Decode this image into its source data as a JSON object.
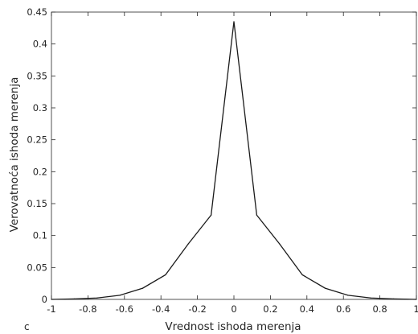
{
  "panel_label": "c",
  "chart_data": {
    "type": "line",
    "title": "",
    "xlabel": "Vrednost ishoda merenja",
    "ylabel": "Verovatnoća ishoda merenja",
    "xlim": [
      -1,
      1
    ],
    "ylim": [
      0,
      0.45
    ],
    "grid": false,
    "legend": "none",
    "line_color": "#1a1a1a",
    "x_ticks": [
      -1,
      -0.8,
      -0.6,
      -0.4,
      -0.2,
      0,
      0.2,
      0.4,
      0.6,
      0.8,
      1
    ],
    "x_tick_labels": [
      "-1",
      "-0.8",
      "-0.6",
      "-0.4",
      "-0.2",
      "0",
      "0.2",
      "0.4",
      "0.6",
      "0.8",
      "1"
    ],
    "y_ticks": [
      0,
      0.05,
      0.1,
      0.15,
      0.2,
      0.25,
      0.3,
      0.35,
      0.4,
      0.45
    ],
    "y_tick_labels": [
      "0",
      "0.05",
      "0.1",
      "0.15",
      "0.2",
      "0.25",
      "0.3",
      "0.35",
      "0.4",
      "0.45"
    ],
    "series": [
      {
        "x": [
          -1,
          -0.875,
          -0.75,
          -0.625,
          -0.5,
          -0.375,
          -0.25,
          -0.125,
          0,
          0.125,
          0.25,
          0.375,
          0.5,
          0.625,
          0.75,
          0.875,
          1
        ],
        "values": [
          0.0,
          0.0008,
          0.0022,
          0.0065,
          0.0175,
          0.0385,
          0.087,
          0.132,
          0.435,
          0.132,
          0.087,
          0.0385,
          0.0175,
          0.0065,
          0.0022,
          0.0008,
          0.0
        ]
      }
    ]
  }
}
